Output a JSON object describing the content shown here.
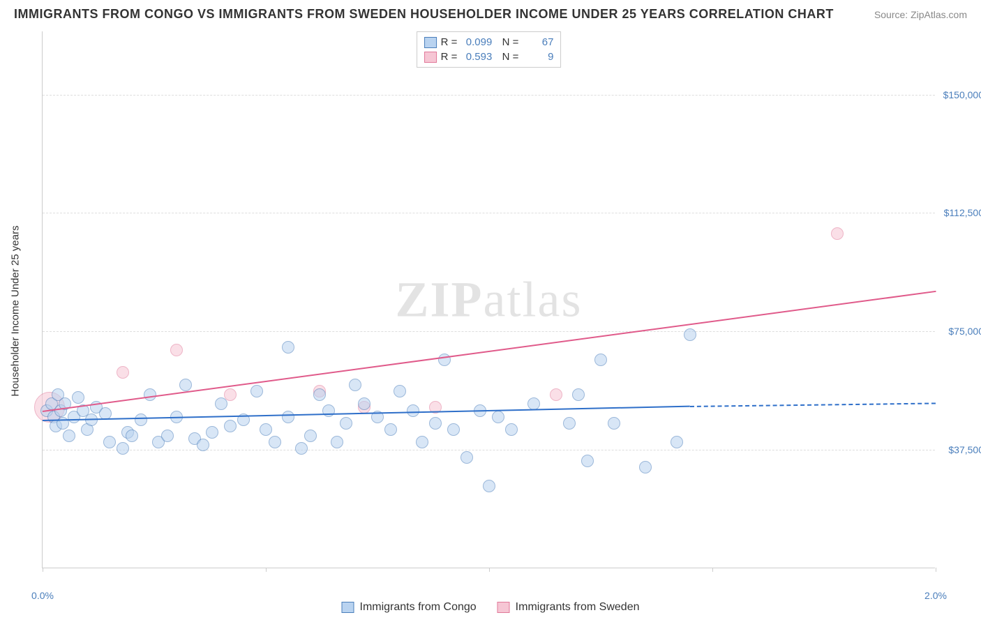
{
  "title": "IMMIGRANTS FROM CONGO VS IMMIGRANTS FROM SWEDEN HOUSEHOLDER INCOME UNDER 25 YEARS CORRELATION CHART",
  "source_label": "Source: ZipAtlas.com",
  "yaxis_title": "Householder Income Under 25 years",
  "watermark_bold": "ZIP",
  "watermark_rest": "atlas",
  "chart": {
    "type": "scatter",
    "xlim": [
      0.0,
      2.0
    ],
    "ylim": [
      0,
      170000
    ],
    "x_ticks": [
      0.0,
      0.5,
      1.0,
      1.5,
      2.0
    ],
    "x_tick_labels": [
      "0.0%",
      "",
      "",
      "",
      "2.0%"
    ],
    "y_grid": [
      37500,
      75000,
      112500,
      150000
    ],
    "y_grid_labels": [
      "$37,500",
      "$75,000",
      "$112,500",
      "$150,000"
    ],
    "background_color": "#ffffff",
    "grid_color": "#dddddd",
    "axis_color": "#cccccc",
    "label_color": "#4a7ebb"
  },
  "series": {
    "congo": {
      "label": "Immigrants from Congo",
      "fill": "#b9d3f0",
      "stroke": "#4a7ebb",
      "fill_opacity": 0.55,
      "marker_radius": 9,
      "trend_color": "#2e6fc9",
      "trend": {
        "x1": 0.0,
        "y1": 47000,
        "x2": 1.45,
        "y2": 51500,
        "dash_x2": 2.0,
        "dash_y2": 52500
      },
      "R": "0.099",
      "N": "67",
      "points": [
        {
          "x": 0.01,
          "y": 50000
        },
        {
          "x": 0.02,
          "y": 52000
        },
        {
          "x": 0.025,
          "y": 48000
        },
        {
          "x": 0.03,
          "y": 45000
        },
        {
          "x": 0.035,
          "y": 55000
        },
        {
          "x": 0.04,
          "y": 50000
        },
        {
          "x": 0.045,
          "y": 46000
        },
        {
          "x": 0.05,
          "y": 52000
        },
        {
          "x": 0.06,
          "y": 42000
        },
        {
          "x": 0.07,
          "y": 48000
        },
        {
          "x": 0.08,
          "y": 54000
        },
        {
          "x": 0.09,
          "y": 50000
        },
        {
          "x": 0.1,
          "y": 44000
        },
        {
          "x": 0.11,
          "y": 47000
        },
        {
          "x": 0.12,
          "y": 51000
        },
        {
          "x": 0.14,
          "y": 49000
        },
        {
          "x": 0.15,
          "y": 40000
        },
        {
          "x": 0.18,
          "y": 38000
        },
        {
          "x": 0.19,
          "y": 43000
        },
        {
          "x": 0.2,
          "y": 42000
        },
        {
          "x": 0.22,
          "y": 47000
        },
        {
          "x": 0.24,
          "y": 55000
        },
        {
          "x": 0.26,
          "y": 40000
        },
        {
          "x": 0.28,
          "y": 42000
        },
        {
          "x": 0.3,
          "y": 48000
        },
        {
          "x": 0.32,
          "y": 58000
        },
        {
          "x": 0.34,
          "y": 41000
        },
        {
          "x": 0.36,
          "y": 39000
        },
        {
          "x": 0.38,
          "y": 43000
        },
        {
          "x": 0.4,
          "y": 52000
        },
        {
          "x": 0.42,
          "y": 45000
        },
        {
          "x": 0.55,
          "y": 70000
        },
        {
          "x": 0.45,
          "y": 47000
        },
        {
          "x": 0.48,
          "y": 56000
        },
        {
          "x": 0.5,
          "y": 44000
        },
        {
          "x": 0.52,
          "y": 40000
        },
        {
          "x": 0.55,
          "y": 48000
        },
        {
          "x": 0.58,
          "y": 38000
        },
        {
          "x": 0.6,
          "y": 42000
        },
        {
          "x": 0.62,
          "y": 55000
        },
        {
          "x": 0.64,
          "y": 50000
        },
        {
          "x": 0.66,
          "y": 40000
        },
        {
          "x": 0.68,
          "y": 46000
        },
        {
          "x": 0.7,
          "y": 58000
        },
        {
          "x": 0.72,
          "y": 52000
        },
        {
          "x": 0.75,
          "y": 48000
        },
        {
          "x": 0.78,
          "y": 44000
        },
        {
          "x": 0.8,
          "y": 56000
        },
        {
          "x": 0.83,
          "y": 50000
        },
        {
          "x": 0.85,
          "y": 40000
        },
        {
          "x": 0.88,
          "y": 46000
        },
        {
          "x": 0.9,
          "y": 66000
        },
        {
          "x": 0.92,
          "y": 44000
        },
        {
          "x": 0.95,
          "y": 35000
        },
        {
          "x": 0.98,
          "y": 50000
        },
        {
          "x": 1.0,
          "y": 26000
        },
        {
          "x": 1.02,
          "y": 48000
        },
        {
          "x": 1.05,
          "y": 44000
        },
        {
          "x": 1.1,
          "y": 52000
        },
        {
          "x": 1.18,
          "y": 46000
        },
        {
          "x": 1.2,
          "y": 55000
        },
        {
          "x": 1.22,
          "y": 34000
        },
        {
          "x": 1.25,
          "y": 66000
        },
        {
          "x": 1.28,
          "y": 46000
        },
        {
          "x": 1.35,
          "y": 32000
        },
        {
          "x": 1.42,
          "y": 40000
        },
        {
          "x": 1.45,
          "y": 74000
        }
      ]
    },
    "sweden": {
      "label": "Immigrants from Sweden",
      "fill": "#f6c6d4",
      "stroke": "#e17899",
      "fill_opacity": 0.55,
      "marker_radius": 9,
      "trend_color": "#e05a8a",
      "trend": {
        "x1": 0.0,
        "y1": 50000,
        "x2": 2.0,
        "y2": 88000
      },
      "R": "0.593",
      "N": "9",
      "points": [
        {
          "x": 0.015,
          "y": 51000,
          "r": 22
        },
        {
          "x": 0.18,
          "y": 62000
        },
        {
          "x": 0.3,
          "y": 69000
        },
        {
          "x": 0.42,
          "y": 55000
        },
        {
          "x": 0.62,
          "y": 56000
        },
        {
          "x": 0.72,
          "y": 51000
        },
        {
          "x": 0.88,
          "y": 51000
        },
        {
          "x": 1.15,
          "y": 55000
        },
        {
          "x": 1.78,
          "y": 106000
        }
      ]
    }
  }
}
